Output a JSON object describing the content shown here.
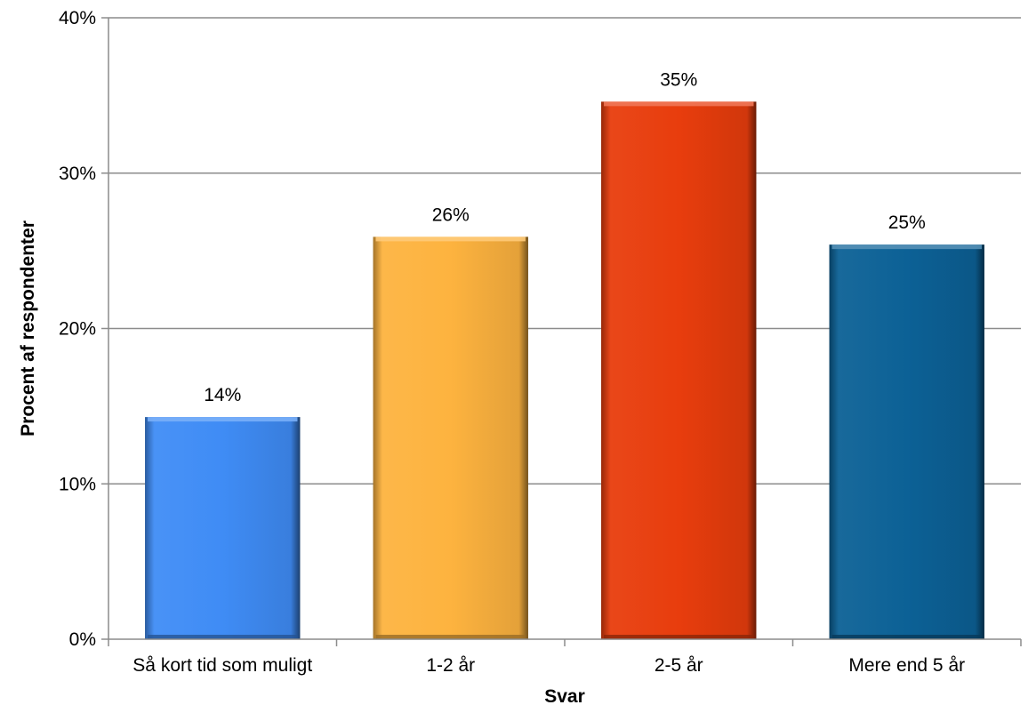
{
  "chart_data": {
    "type": "bar",
    "title": "",
    "xlabel": "Svar",
    "ylabel": "Procent af respondenter",
    "categories": [
      "Så kort tid som muligt",
      "1-2 år",
      "2-5 år",
      "Mere end 5 år"
    ],
    "values": [
      14.3,
      25.9,
      34.6,
      25.4
    ],
    "data_labels": [
      "14%",
      "26%",
      "35%",
      "25%"
    ],
    "ylim": [
      0,
      40
    ],
    "yticks": [
      0,
      10,
      20,
      30,
      40
    ],
    "ytick_labels": [
      "0%",
      "10%",
      "20%",
      "30%",
      "40%"
    ],
    "grid": true,
    "legend": "none",
    "colors": [
      "#3f8cf5",
      "#fdb33f",
      "#e83d0d",
      "#0c6196"
    ]
  }
}
